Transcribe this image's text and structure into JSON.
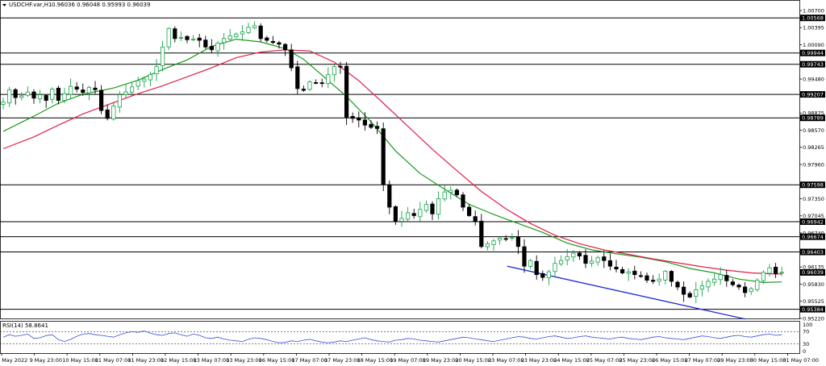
{
  "header": {
    "symbol_text": "USDCHF.var,H1",
    "ohlc_text": "0.96036 0.96048 0.95993 0.96039"
  },
  "rsi_panel": {
    "label": "RSI(14) 58.8641"
  },
  "chart_data": {
    "type": "candlestick",
    "title": "USDCHF.var,H1",
    "y_tick_labels": [
      "1.00700",
      "1.00395",
      "1.00090",
      "0.99480",
      "0.98875",
      "0.98570",
      "0.98265",
      "0.97960",
      "0.97350",
      "0.97045",
      "0.96740",
      "0.96135",
      "0.95830",
      "0.95525",
      "0.95220"
    ],
    "ylim": [
      0.9522,
      1.007
    ],
    "x_tick_labels": [
      "9 May 2022",
      "9 May 23:00",
      "10 May 15:00",
      "11 May 07:00",
      "11 May 23:00",
      "12 May 15:00",
      "13 May 07:00",
      "13 May 23:00",
      "16 May 15:00",
      "17 May 07:00",
      "17 May 23:00",
      "18 May 15:00",
      "19 May 07:00",
      "19 May 23:00",
      "20 May 15:00",
      "23 May 07:00",
      "23 May 23:00",
      "24 May 15:00",
      "25 May 07:00",
      "25 May 23:00",
      "26 May 15:00",
      "27 May 07:00",
      "29 May 23:00",
      "30 May 15:00",
      "31 May 07:00"
    ],
    "price_levels": [
      1.00568,
      0.99944,
      0.99743,
      0.99207,
      0.98789,
      0.97598,
      0.96942,
      0.96674,
      0.96403,
      0.95384
    ],
    "current_price": 0.96039,
    "series": [
      {
        "name": "",
        "kind": "moving-average",
        "color": "#1a9a1a",
        "points": [
          [
            0,
            0.9855
          ],
          [
            5,
            0.9882
          ],
          [
            9,
            0.9905
          ],
          [
            13,
            0.9921
          ],
          [
            18,
            0.9932
          ],
          [
            22,
            0.9946
          ],
          [
            26,
            0.9965
          ],
          [
            30,
            0.9982
          ],
          [
            34,
            1.0006
          ],
          [
            38,
            1.0019
          ],
          [
            42,
            1.0014
          ],
          [
            46,
            1.0002
          ],
          [
            49,
            0.9983
          ],
          [
            52,
            0.9955
          ],
          [
            56,
            0.9917
          ],
          [
            60,
            0.9872
          ],
          [
            64,
            0.982
          ],
          [
            68,
            0.978
          ],
          [
            72,
            0.9752
          ],
          [
            76,
            0.9725
          ],
          [
            80,
            0.9707
          ],
          [
            84,
            0.9691
          ],
          [
            88,
            0.9675
          ],
          [
            92,
            0.9656
          ],
          [
            96,
            0.9644
          ],
          [
            100,
            0.9637
          ],
          [
            104,
            0.9631
          ],
          [
            108,
            0.9623
          ],
          [
            112,
            0.9611
          ],
          [
            116,
            0.9603
          ],
          [
            120,
            0.9592
          ],
          [
            124,
            0.9586
          ],
          [
            127,
            0.9587
          ]
        ]
      },
      {
        "name": "",
        "kind": "moving-average",
        "color": "#e0204a",
        "points": [
          [
            0,
            0.9824
          ],
          [
            5,
            0.9845
          ],
          [
            9,
            0.9866
          ],
          [
            13,
            0.9886
          ],
          [
            18,
            0.9906
          ],
          [
            22,
            0.9922
          ],
          [
            26,
            0.9936
          ],
          [
            30,
            0.9952
          ],
          [
            34,
            0.9968
          ],
          [
            38,
            0.9986
          ],
          [
            42,
            0.9996
          ],
          [
            46,
            1.0
          ],
          [
            50,
            0.9998
          ],
          [
            54,
            0.9978
          ],
          [
            58,
            0.9945
          ],
          [
            62,
            0.9905
          ],
          [
            66,
            0.9864
          ],
          [
            70,
            0.9823
          ],
          [
            74,
            0.9785
          ],
          [
            78,
            0.9748
          ],
          [
            82,
            0.9717
          ],
          [
            86,
            0.9691
          ],
          [
            90,
            0.967
          ],
          [
            94,
            0.9655
          ],
          [
            98,
            0.9644
          ],
          [
            102,
            0.9636
          ],
          [
            106,
            0.9628
          ],
          [
            110,
            0.9621
          ],
          [
            114,
            0.9614
          ],
          [
            118,
            0.9608
          ],
          [
            122,
            0.9603
          ],
          [
            126,
            0.9601
          ],
          [
            127,
            0.9601
          ]
        ]
      },
      {
        "name": "",
        "kind": "trendline",
        "color": "#1a2ad6",
        "points": [
          [
            82.2,
            0.9615
          ],
          [
            121,
            0.9521
          ]
        ]
      }
    ],
    "candle_keypoints": [
      [
        0,
        0.9907
      ],
      [
        1,
        0.9929
      ],
      [
        2,
        0.9915
      ],
      [
        3,
        0.9918
      ],
      [
        4,
        0.9925
      ],
      [
        5,
        0.9914
      ],
      [
        6,
        0.992
      ],
      [
        7,
        0.991
      ],
      [
        8,
        0.993
      ],
      [
        9,
        0.991
      ],
      [
        10,
        0.9922
      ],
      [
        11,
        0.9935
      ],
      [
        12,
        0.993
      ],
      [
        13,
        0.9924
      ],
      [
        14,
        0.9933
      ],
      [
        15,
        0.9929
      ],
      [
        16,
        0.9892
      ],
      [
        17,
        0.9878
      ],
      [
        18,
        0.99
      ],
      [
        19,
        0.992
      ],
      [
        20,
        0.9925
      ],
      [
        21,
        0.9934
      ],
      [
        22,
        0.9945
      ],
      [
        23,
        0.9948
      ],
      [
        24,
        0.9956
      ],
      [
        25,
        0.997
      ],
      [
        26,
        1.0005
      ],
      [
        27,
        1.0038
      ],
      [
        28,
        1.002
      ],
      [
        29,
        1.0022
      ],
      [
        30,
        1.0018
      ],
      [
        31,
        1.0019
      ],
      [
        32,
        1.0017
      ],
      [
        33,
        1.0005
      ],
      [
        34,
        1.0
      ],
      [
        35,
        1.0012
      ],
      [
        36,
        1.002
      ],
      [
        37,
        1.0025
      ],
      [
        38,
        1.0028
      ],
      [
        39,
        1.0032
      ],
      [
        40,
        1.004
      ],
      [
        41,
        1.0043
      ],
      [
        42,
        1.002
      ],
      [
        43,
        1.0017
      ],
      [
        44,
        1.0013
      ],
      [
        45,
        1.001
      ],
      [
        46,
        1.0
      ],
      [
        47,
        0.9968
      ],
      [
        48,
        0.9931
      ],
      [
        49,
        0.9928
      ],
      [
        50,
        0.9943
      ],
      [
        51,
        0.9941
      ],
      [
        52,
        0.994
      ],
      [
        53,
        0.9956
      ],
      [
        54,
        0.997
      ],
      [
        55,
        0.997
      ],
      [
        56,
        0.988
      ],
      [
        57,
        0.9878
      ],
      [
        58,
        0.9875
      ],
      [
        59,
        0.9866
      ],
      [
        60,
        0.9862
      ],
      [
        61,
        0.986
      ],
      [
        62,
        0.976
      ],
      [
        63,
        0.972
      ],
      [
        64,
        0.9695
      ],
      [
        65,
        0.97
      ],
      [
        66,
        0.971
      ],
      [
        67,
        0.9705
      ],
      [
        68,
        0.9716
      ],
      [
        69,
        0.9725
      ],
      [
        70,
        0.9708
      ],
      [
        71,
        0.9735
      ],
      [
        72,
        0.9747
      ],
      [
        73,
        0.975
      ],
      [
        74,
        0.9742
      ],
      [
        75,
        0.972
      ],
      [
        76,
        0.9705
      ],
      [
        77,
        0.9695
      ],
      [
        78,
        0.965
      ],
      [
        79,
        0.9655
      ],
      [
        80,
        0.966
      ],
      [
        81,
        0.9665
      ],
      [
        82,
        0.9664
      ],
      [
        83,
        0.9666
      ],
      [
        84,
        0.965
      ],
      [
        85,
        0.9615
      ],
      [
        86,
        0.9625
      ],
      [
        87,
        0.96
      ],
      [
        88,
        0.9595
      ],
      [
        89,
        0.9605
      ],
      [
        90,
        0.962
      ],
      [
        91,
        0.9625
      ],
      [
        92,
        0.9632
      ],
      [
        93,
        0.9638
      ],
      [
        94,
        0.9633
      ],
      [
        95,
        0.962
      ],
      [
        96,
        0.9624
      ],
      [
        97,
        0.963
      ],
      [
        98,
        0.9625
      ],
      [
        99,
        0.9615
      ],
      [
        100,
        0.961
      ],
      [
        101,
        0.9603
      ],
      [
        102,
        0.9605
      ],
      [
        103,
        0.96
      ],
      [
        104,
        0.9598
      ],
      [
        105,
        0.959
      ],
      [
        106,
        0.9588
      ],
      [
        107,
        0.9592
      ],
      [
        108,
        0.9606
      ],
      [
        109,
        0.9588
      ],
      [
        110,
        0.9578
      ],
      [
        111,
        0.9565
      ],
      [
        112,
        0.956
      ],
      [
        113,
        0.9573
      ],
      [
        114,
        0.958
      ],
      [
        115,
        0.9588
      ],
      [
        116,
        0.9592
      ],
      [
        117,
        0.96
      ],
      [
        118,
        0.9589
      ],
      [
        119,
        0.9582
      ],
      [
        120,
        0.9578
      ],
      [
        121,
        0.9568
      ],
      [
        122,
        0.9575
      ],
      [
        123,
        0.959
      ],
      [
        124,
        0.9604
      ],
      [
        125,
        0.9612
      ],
      [
        126,
        0.9602
      ],
      [
        127,
        0.9604
      ]
    ],
    "rsi": {
      "name": "RSI(14)",
      "value": 58.8641,
      "ylim": [
        0,
        100
      ],
      "tick_labels": [
        "100",
        "70",
        "30",
        "0"
      ],
      "levels": [
        70,
        30
      ],
      "values": [
        52,
        60,
        55,
        58,
        62,
        48,
        50,
        57,
        60,
        44,
        38,
        45,
        55,
        62,
        64,
        60,
        58,
        55,
        52,
        60,
        66,
        70,
        68,
        72,
        65,
        60,
        58,
        64,
        66,
        60,
        55,
        62,
        58,
        50,
        48,
        52,
        46,
        42,
        40,
        38,
        45,
        50,
        48,
        44,
        38,
        34,
        35,
        40,
        38,
        42,
        45,
        40,
        36,
        34,
        36,
        40,
        38,
        42,
        46,
        50,
        44,
        40,
        38,
        36,
        42,
        44,
        48,
        46,
        42,
        40,
        38,
        36,
        40,
        44,
        48,
        52,
        50,
        46,
        44,
        40,
        38,
        42,
        46,
        50,
        54,
        52,
        48,
        46,
        50,
        54,
        56,
        52,
        48,
        50,
        54,
        56,
        52,
        50,
        48,
        46,
        50,
        52,
        48,
        46,
        44,
        48,
        52,
        54,
        50,
        48,
        46,
        44,
        48,
        52,
        56,
        54,
        50,
        48,
        52,
        56,
        58,
        54,
        52,
        56,
        60,
        62,
        58,
        60
      ]
    },
    "colors": {
      "bull": "#16a34a",
      "bear": "#000000",
      "level_line": "#000000",
      "level_label_bg": "#000000",
      "rsi_line": "#3a4fd8",
      "rsi_level": "#333333"
    }
  }
}
